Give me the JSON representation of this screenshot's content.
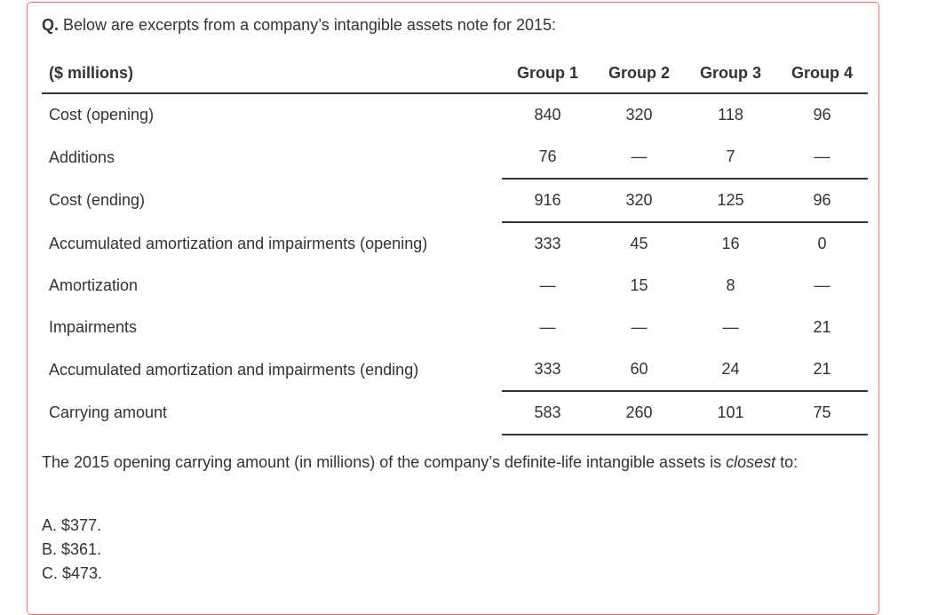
{
  "question": {
    "prefix": "Q.",
    "text": " Below are excerpts from a company’s intangible assets note for 2015:"
  },
  "table": {
    "units_label": "($ millions)",
    "columns": [
      "Group 1",
      "Group 2",
      "Group 3",
      "Group 4"
    ],
    "rows": [
      {
        "label": "Cost (opening)",
        "values": [
          "840",
          "320",
          "118",
          "96"
        ]
      },
      {
        "label": "Additions",
        "values": [
          "76",
          "—",
          "7",
          "—"
        ]
      },
      {
        "label": "Cost (ending)",
        "values": [
          "916",
          "320",
          "125",
          "96"
        ]
      },
      {
        "label": "Accumulated amortization and impairments (opening)",
        "values": [
          "333",
          "45",
          "16",
          "0"
        ]
      },
      {
        "label": "Amortization",
        "values": [
          "—",
          "15",
          "8",
          "—"
        ]
      },
      {
        "label": "Impairments",
        "values": [
          "—",
          "—",
          "—",
          "21"
        ]
      },
      {
        "label": "Accumulated amortization and impairments (ending)",
        "values": [
          "333",
          "60",
          "24",
          "21"
        ]
      },
      {
        "label": "Carrying amount",
        "values": [
          "583",
          "260",
          "101",
          "75"
        ]
      }
    ]
  },
  "prompt": {
    "before": "The 2015 opening carrying amount (in millions) of the company’s definite-life intangible assets is ",
    "emphasis": "closest",
    "after": " to:"
  },
  "options": [
    {
      "letter": "A.",
      "text": "$377."
    },
    {
      "letter": "B.",
      "text": "$361."
    },
    {
      "letter": "C.",
      "text": "$473."
    }
  ],
  "colors": {
    "border": "#e0736f",
    "text": "#333333"
  }
}
